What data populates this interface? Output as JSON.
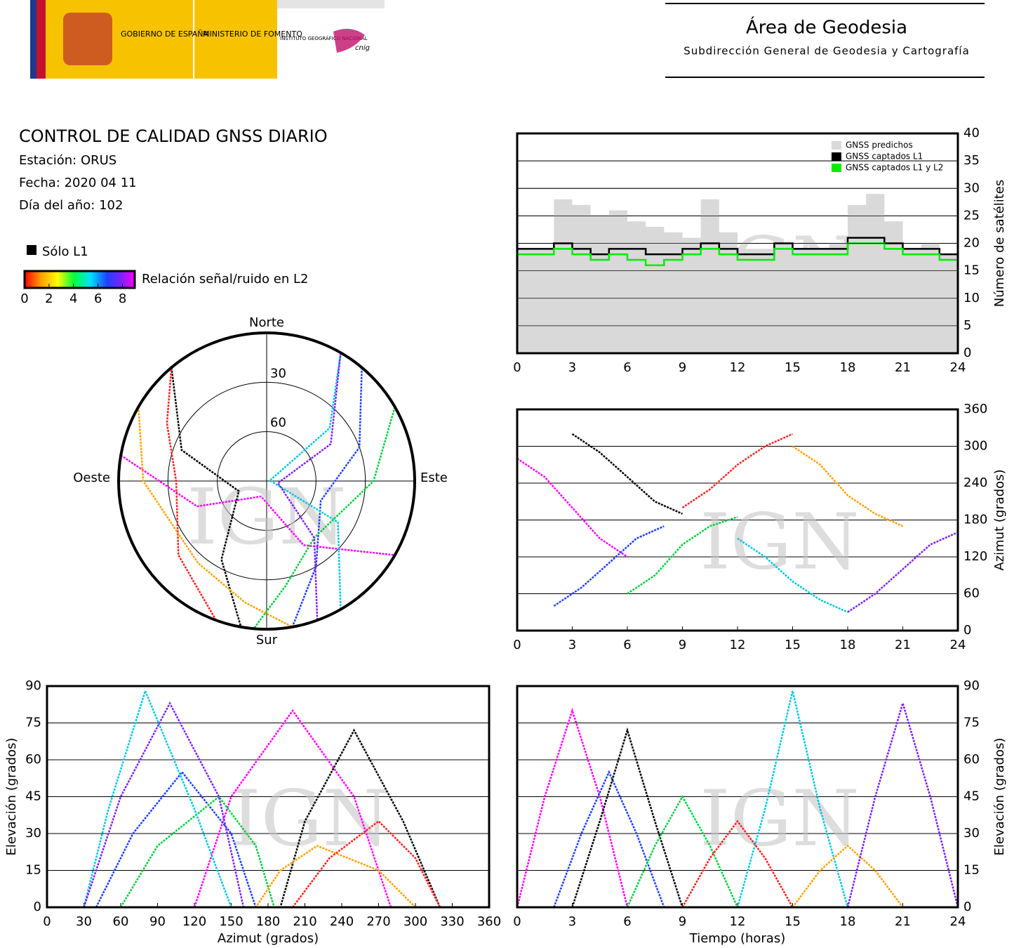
{
  "header": {
    "gov": "GOBIERNO DE ESPAÑA",
    "ministry": "MINISTERIO DE FOMENTO",
    "institute": "INSTITUTO GEOGRÁFICO NACIONAL",
    "cnig": "cnig",
    "title": "Área de Geodesia",
    "subtitle": "Subdirección General de Geodesia y Cartografía"
  },
  "info": {
    "title": "CONTROL DE CALIDAD GNSS DIARIO",
    "station": "Estación: ORUS",
    "date": "Fecha: 2020 04 11",
    "doy": "Día del año: 102",
    "l1_only": "Sólo L1",
    "snr_label": "Relación señal/ruido en L2",
    "colorbar_lim": [
      0,
      9
    ],
    "colorbar_ticks": [
      0,
      2,
      4,
      6,
      8
    ]
  },
  "watermark": "IGN",
  "chart_data": [
    {
      "type": "step",
      "ylabel": "Número de satélites",
      "xlim": [
        0,
        24
      ],
      "xticks": [
        0,
        3,
        6,
        9,
        12,
        15,
        18,
        21,
        24
      ],
      "ylim": [
        0,
        40
      ],
      "yticks": [
        0,
        5,
        10,
        15,
        20,
        25,
        30,
        35,
        40
      ],
      "grid": true,
      "legend": "top-right",
      "x": [
        0,
        1,
        2,
        3,
        4,
        5,
        6,
        7,
        8,
        9,
        10,
        11,
        12,
        13,
        14,
        15,
        16,
        17,
        18,
        19,
        20,
        21,
        22,
        23,
        24
      ],
      "series": [
        {
          "name": "GNSS predichos",
          "color": "#d9d9d9",
          "area": true,
          "values": [
            19,
            19,
            28,
            27,
            25,
            26,
            24,
            23,
            22,
            21,
            28,
            22,
            19,
            19,
            20,
            19,
            19,
            20,
            27,
            29,
            24,
            19,
            20,
            18,
            18
          ]
        },
        {
          "name": "GNSS captados L1",
          "color": "#000000",
          "values": [
            19,
            19,
            20,
            19,
            18,
            19,
            19,
            18,
            18,
            19,
            20,
            19,
            18,
            18,
            20,
            19,
            19,
            19,
            21,
            21,
            20,
            19,
            19,
            18,
            18
          ]
        },
        {
          "name": "GNSS captados L1 y L2",
          "color": "#00ee00",
          "values": [
            18,
            18,
            19,
            18,
            17,
            18,
            17,
            16,
            17,
            18,
            19,
            18,
            17,
            17,
            19,
            18,
            18,
            18,
            20,
            20,
            19,
            18,
            18,
            17,
            17
          ]
        }
      ]
    },
    {
      "type": "polar",
      "labels": {
        "north": "Norte",
        "south": "Sur",
        "east": "Este",
        "west": "Oeste"
      },
      "rlim": [
        0,
        90
      ],
      "rticks": [
        30,
        60
      ],
      "series": [
        {
          "color": "#ff00ff",
          "azimuth": [
            280,
            250,
            200,
            150,
            120
          ],
          "elevation": [
            0,
            45,
            80,
            45,
            0
          ]
        },
        {
          "color": "#2040ff",
          "azimuth": [
            40,
            70,
            110,
            150,
            170
          ],
          "elevation": [
            0,
            30,
            55,
            30,
            0
          ]
        },
        {
          "color": "#000000",
          "azimuth": [
            320,
            290,
            250,
            210,
            190
          ],
          "elevation": [
            0,
            35,
            72,
            35,
            0
          ]
        },
        {
          "color": "#00d040",
          "azimuth": [
            60,
            90,
            140,
            170,
            185
          ],
          "elevation": [
            0,
            25,
            45,
            25,
            0
          ]
        },
        {
          "color": "#ff2020",
          "azimuth": [
            200,
            230,
            270,
            300,
            320
          ],
          "elevation": [
            0,
            20,
            35,
            20,
            0
          ]
        },
        {
          "color": "#00c8e0",
          "azimuth": [
            150,
            120,
            80,
            50,
            30
          ],
          "elevation": [
            0,
            40,
            88,
            40,
            0
          ]
        },
        {
          "color": "#ffa000",
          "azimuth": [
            300,
            270,
            220,
            190,
            170
          ],
          "elevation": [
            0,
            15,
            25,
            15,
            0
          ]
        },
        {
          "color": "#8020ff",
          "azimuth": [
            30,
            60,
            100,
            140,
            160
          ],
          "elevation": [
            0,
            45,
            83,
            45,
            0
          ]
        }
      ]
    },
    {
      "type": "line",
      "ylabel": "Azimut (grados)",
      "xlim": [
        0,
        24
      ],
      "xticks": [
        0,
        3,
        6,
        9,
        12,
        15,
        18,
        21,
        24
      ],
      "ylim": [
        0,
        360
      ],
      "yticks": [
        0,
        60,
        120,
        180,
        240,
        300,
        360
      ],
      "grid": true,
      "series": [
        {
          "color": "#ff00ff",
          "x": [
            0,
            1.5,
            3,
            4.5,
            6
          ],
          "values": [
            280,
            250,
            200,
            150,
            120
          ]
        },
        {
          "color": "#2040ff",
          "x": [
            2,
            3.5,
            5,
            6.5,
            8
          ],
          "values": [
            40,
            70,
            110,
            150,
            170
          ]
        },
        {
          "color": "#000000",
          "x": [
            3,
            4.5,
            6,
            7.5,
            9
          ],
          "values": [
            320,
            290,
            250,
            210,
            190
          ]
        },
        {
          "color": "#00d040",
          "x": [
            6,
            7.5,
            9,
            10.5,
            12
          ],
          "values": [
            60,
            90,
            140,
            170,
            185
          ]
        },
        {
          "color": "#ff2020",
          "x": [
            9,
            10.5,
            12,
            13.5,
            15
          ],
          "values": [
            200,
            230,
            270,
            300,
            320
          ]
        },
        {
          "color": "#00c8e0",
          "x": [
            12,
            13.5,
            15,
            16.5,
            18
          ],
          "values": [
            150,
            120,
            80,
            50,
            30
          ]
        },
        {
          "color": "#ffa000",
          "x": [
            15,
            16.5,
            18,
            19.5,
            21
          ],
          "values": [
            300,
            270,
            220,
            190,
            170
          ]
        },
        {
          "color": "#8020ff",
          "x": [
            18,
            19.5,
            21,
            22.5,
            24
          ],
          "values": [
            30,
            60,
            100,
            140,
            160
          ]
        }
      ]
    },
    {
      "type": "line",
      "xlabel": "Azimut (grados)",
      "ylabel": "Elevación (grados)",
      "yside": "left",
      "xlim": [
        0,
        360
      ],
      "xticks": [
        0,
        30,
        60,
        90,
        120,
        150,
        180,
        210,
        240,
        270,
        300,
        330,
        360
      ],
      "ylim": [
        0,
        90
      ],
      "yticks": [
        0,
        15,
        30,
        45,
        60,
        75,
        90
      ],
      "grid": true,
      "series": [
        {
          "color": "#ff00ff",
          "x": [
            280,
            250,
            200,
            150,
            120
          ],
          "values": [
            0,
            45,
            80,
            45,
            0
          ]
        },
        {
          "color": "#2040ff",
          "x": [
            40,
            70,
            110,
            150,
            170
          ],
          "values": [
            0,
            30,
            55,
            30,
            0
          ]
        },
        {
          "color": "#000000",
          "x": [
            320,
            290,
            250,
            210,
            190
          ],
          "values": [
            0,
            35,
            72,
            35,
            0
          ]
        },
        {
          "color": "#00d040",
          "x": [
            60,
            90,
            140,
            170,
            185
          ],
          "values": [
            0,
            25,
            45,
            25,
            0
          ]
        },
        {
          "color": "#ff2020",
          "x": [
            200,
            230,
            270,
            300,
            320
          ],
          "values": [
            0,
            20,
            35,
            20,
            0
          ]
        },
        {
          "color": "#00c8e0",
          "x": [
            150,
            120,
            80,
            50,
            30
          ],
          "values": [
            0,
            40,
            88,
            40,
            0
          ]
        },
        {
          "color": "#ffa000",
          "x": [
            300,
            270,
            220,
            190,
            170
          ],
          "values": [
            0,
            15,
            25,
            15,
            0
          ]
        },
        {
          "color": "#8020ff",
          "x": [
            30,
            60,
            100,
            140,
            160
          ],
          "values": [
            0,
            45,
            83,
            45,
            0
          ]
        }
      ]
    },
    {
      "type": "line",
      "xlabel": "Tiempo (horas)",
      "ylabel": "Elevación (grados)",
      "xlim": [
        0,
        24
      ],
      "xticks": [
        0,
        3,
        6,
        9,
        12,
        15,
        18,
        21,
        24
      ],
      "ylim": [
        0,
        90
      ],
      "yticks": [
        0,
        15,
        30,
        45,
        60,
        75,
        90
      ],
      "grid": true,
      "series": [
        {
          "color": "#ff00ff",
          "x": [
            0,
            1.5,
            3,
            4.5,
            6
          ],
          "values": [
            0,
            45,
            80,
            45,
            0
          ]
        },
        {
          "color": "#2040ff",
          "x": [
            2,
            3.5,
            5,
            6.5,
            8
          ],
          "values": [
            0,
            30,
            55,
            30,
            0
          ]
        },
        {
          "color": "#000000",
          "x": [
            3,
            4.5,
            6,
            7.5,
            9
          ],
          "values": [
            0,
            35,
            72,
            35,
            0
          ]
        },
        {
          "color": "#00d040",
          "x": [
            6,
            7.5,
            9,
            10.5,
            12
          ],
          "values": [
            0,
            25,
            45,
            25,
            0
          ]
        },
        {
          "color": "#ff2020",
          "x": [
            9,
            10.5,
            12,
            13.5,
            15
          ],
          "values": [
            0,
            20,
            35,
            20,
            0
          ]
        },
        {
          "color": "#00c8e0",
          "x": [
            12,
            13.5,
            15,
            16.5,
            18
          ],
          "values": [
            0,
            40,
            88,
            40,
            0
          ]
        },
        {
          "color": "#ffa000",
          "x": [
            15,
            16.5,
            18,
            19.5,
            21
          ],
          "values": [
            0,
            15,
            25,
            15,
            0
          ]
        },
        {
          "color": "#8020ff",
          "x": [
            18,
            19.5,
            21,
            22.5,
            24
          ],
          "values": [
            0,
            45,
            83,
            45,
            0
          ]
        }
      ]
    }
  ]
}
